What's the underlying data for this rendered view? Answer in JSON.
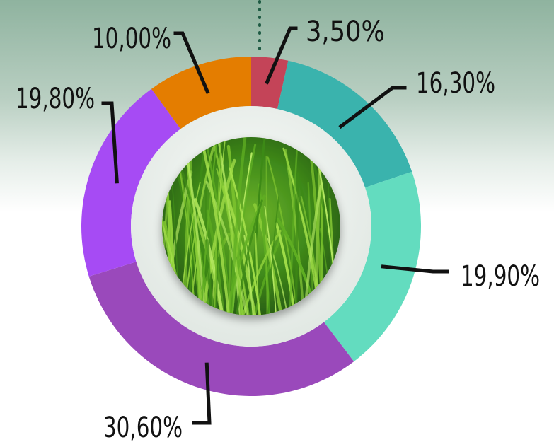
{
  "chart_data": {
    "type": "pie",
    "variant": "donut",
    "categories": [
      "",
      "",
      "",
      "",
      "",
      ""
    ],
    "values": [
      3.5,
      16.3,
      19.9,
      30.6,
      19.8,
      10.0
    ],
    "labels": [
      "3,50%",
      "16,30%",
      "19,90%",
      "30,60%",
      "19,80%",
      "10,00%"
    ],
    "colors": [
      "#c44458",
      "#3ab3ad",
      "#63dcbf",
      "#9a49bb",
      "#a64bf4",
      "#e47d00"
    ],
    "title": "",
    "legend": "none",
    "center_image": "grass-photo"
  },
  "colors": {
    "background_top": "#8fb39f",
    "background_bottom": "#ffffff",
    "inner_ring": "#e5ebe7",
    "leader_line": "#111111",
    "dotted_line": "#1f5b44"
  }
}
